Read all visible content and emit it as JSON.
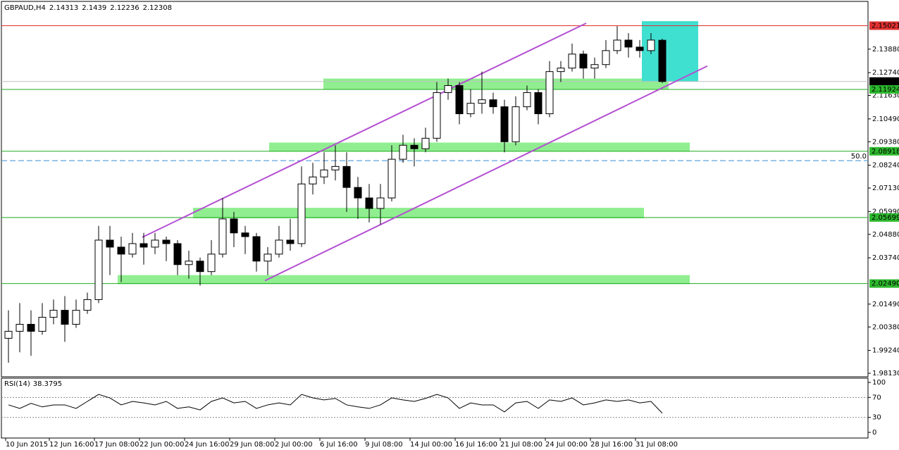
{
  "chart_data": [
    {
      "type": "candlestick",
      "symbol": "GBPAUD,H4",
      "xlim": [
        -0.5,
        307
      ],
      "ylim": [
        1.9796,
        2.162
      ],
      "xticks": [
        {
          "value": 1,
          "label": "10 Jun 2015"
        },
        {
          "value": 16.5,
          "label": "12 Jun 16:00"
        },
        {
          "value": 32.5,
          "label": "17 Jun 08:00"
        },
        {
          "value": 48.5,
          "label": "22 Jun 00:00"
        },
        {
          "value": 64.5,
          "label": "24 Jun 16:00"
        },
        {
          "value": 80.5,
          "label": "29 Jun 08:00"
        },
        {
          "value": 96.5,
          "label": "2 Jul 00:00"
        },
        {
          "value": 112.5,
          "label": "6 Jul 16:00"
        },
        {
          "value": 128.5,
          "label": "9 Jul 08:00"
        },
        {
          "value": 144.5,
          "label": "14 Jul 00:00"
        },
        {
          "value": 160.5,
          "label": "16 Jul 16:00"
        },
        {
          "value": 176.5,
          "label": "21 Jul 08:00"
        },
        {
          "value": 192.5,
          "label": "24 Jul 00:00"
        },
        {
          "value": 208.5,
          "label": "28 Jul 16:00"
        },
        {
          "value": 224.5,
          "label": "31 Jul 08:00"
        }
      ],
      "yticks": [
        {
          "value": 2.1388,
          "label": "2.13880"
        },
        {
          "value": 2.1274,
          "label": "2.12740"
        },
        {
          "value": 2.1163,
          "label": "2.11630"
        },
        {
          "value": 2.1049,
          "label": "2.10490"
        },
        {
          "value": 2.0938,
          "label": "2.09380"
        },
        {
          "value": 2.0824,
          "label": "2.08240"
        },
        {
          "value": 2.0713,
          "label": "2.07130"
        },
        {
          "value": 2.0599,
          "label": "2.05990"
        },
        {
          "value": 2.0488,
          "label": "2.04880"
        },
        {
          "value": 2.0374,
          "label": "2.03740"
        },
        {
          "value": 2.0149,
          "label": "2.01490"
        },
        {
          "value": 2.0038,
          "label": "2.00380"
        },
        {
          "value": 1.9924,
          "label": "1.99240"
        },
        {
          "value": 1.9813,
          "label": "1.98130"
        }
      ],
      "up_color": "#ffffff",
      "down_color": "#000000",
      "outline_color": "#000000",
      "x": [
        2,
        6,
        10,
        14,
        18,
        22,
        26,
        30,
        34,
        38,
        42,
        46,
        50,
        54,
        58,
        62,
        66,
        70,
        74,
        78,
        82,
        86,
        90,
        94,
        98,
        102,
        106,
        110,
        114,
        118,
        122,
        126,
        130,
        134,
        138,
        142,
        146,
        150,
        154,
        158,
        162,
        166,
        170,
        174,
        178,
        182,
        186,
        190,
        194,
        198,
        202,
        206,
        210,
        214,
        218,
        222,
        226,
        230,
        234
      ],
      "ohlc": [
        [
          1.9983,
          2.0119,
          1.9864,
          2.0017
        ],
        [
          2.0017,
          2.0154,
          1.9915,
          2.0051
        ],
        [
          2.0051,
          2.0119,
          1.9898,
          2.0017
        ],
        [
          2.0017,
          2.0154,
          2.0,
          2.0085
        ],
        [
          2.0085,
          2.0171,
          2.0051,
          2.0119
        ],
        [
          2.0119,
          2.0188,
          1.9966,
          2.0051
        ],
        [
          2.0051,
          2.0171,
          2.0034,
          2.0119
        ],
        [
          2.0119,
          2.0205,
          2.0102,
          2.0171
        ],
        [
          2.0171,
          2.0529,
          2.0154,
          2.046
        ],
        [
          2.046,
          2.0529,
          2.029,
          2.0426
        ],
        [
          2.0426,
          2.0477,
          2.0256,
          2.0392
        ],
        [
          2.0392,
          2.0495,
          2.0375,
          2.0443
        ],
        [
          2.0443,
          2.0495,
          2.0341,
          2.0426
        ],
        [
          2.0426,
          2.0495,
          2.0392,
          2.046
        ],
        [
          2.046,
          2.0477,
          2.0358,
          2.0443
        ],
        [
          2.0443,
          2.046,
          2.029,
          2.0341
        ],
        [
          2.0341,
          2.0409,
          2.0273,
          2.0358
        ],
        [
          2.0358,
          2.0375,
          2.0239,
          2.0307
        ],
        [
          2.0307,
          2.046,
          2.029,
          2.0392
        ],
        [
          2.0392,
          2.0665,
          2.0375,
          2.0563
        ],
        [
          2.0563,
          2.0597,
          2.0426,
          2.0495
        ],
        [
          2.0495,
          2.0529,
          2.0392,
          2.0477
        ],
        [
          2.0477,
          2.0495,
          2.0307,
          2.0358
        ],
        [
          2.0358,
          2.0426,
          2.029,
          2.0392
        ],
        [
          2.0392,
          2.0529,
          2.0375,
          2.046
        ],
        [
          2.046,
          2.0563,
          2.0409,
          2.0443
        ],
        [
          2.0443,
          2.0818,
          2.0426,
          2.0733
        ],
        [
          2.0733,
          2.0836,
          2.0682,
          2.0767
        ],
        [
          2.0767,
          2.0887,
          2.0733,
          2.0801
        ],
        [
          2.0801,
          2.0921,
          2.075,
          2.0818
        ],
        [
          2.0818,
          2.0887,
          2.0597,
          2.0716
        ],
        [
          2.0716,
          2.0767,
          2.0563,
          2.0665
        ],
        [
          2.0665,
          2.0733,
          2.0546,
          2.0614
        ],
        [
          2.0614,
          2.0733,
          2.0535,
          2.0665
        ],
        [
          2.0665,
          2.0921,
          2.0648,
          2.0853
        ],
        [
          2.0853,
          2.0972,
          2.0836,
          2.0921
        ],
        [
          2.0921,
          2.0955,
          2.0818,
          2.0904
        ],
        [
          2.0904,
          2.1006,
          2.0887,
          2.0955
        ],
        [
          2.0955,
          2.1228,
          2.0938,
          2.1177
        ],
        [
          2.1177,
          2.1245,
          2.1142,
          2.1211
        ],
        [
          2.1211,
          2.1228,
          2.1023,
          2.1074
        ],
        [
          2.1074,
          2.1194,
          2.1057,
          2.1125
        ],
        [
          2.1125,
          2.1279,
          2.1074,
          2.1142
        ],
        [
          2.1142,
          2.1177,
          2.1074,
          2.1108
        ],
        [
          2.1108,
          2.1142,
          2.0887,
          2.0938
        ],
        [
          2.0938,
          2.1159,
          2.0921,
          2.1108
        ],
        [
          2.1108,
          2.1211,
          2.1091,
          2.1177
        ],
        [
          2.1177,
          2.1194,
          2.1023,
          2.1074
        ],
        [
          2.1074,
          2.133,
          2.1057,
          2.1279
        ],
        [
          2.1279,
          2.133,
          2.1228,
          2.1296
        ],
        [
          2.1296,
          2.1415,
          2.1279,
          2.1364
        ],
        [
          2.1364,
          2.1381,
          2.1245,
          2.1296
        ],
        [
          2.1296,
          2.1347,
          2.1245,
          2.1313
        ],
        [
          2.1313,
          2.1432,
          2.1296,
          2.1381
        ],
        [
          2.1381,
          2.15,
          2.1364,
          2.1432
        ],
        [
          2.1432,
          2.1466,
          2.1347,
          2.1398
        ],
        [
          2.1398,
          2.1432,
          2.1347,
          2.1381
        ],
        [
          2.1381,
          2.1466,
          2.1364,
          2.1432
        ],
        [
          2.14313,
          2.1439,
          2.12236,
          2.12308
        ]
      ],
      "zone_color": "#90ee90",
      "zones": [
        {
          "x": [
            113.75,
            236.25
          ],
          "y": [
            2.1191,
            2.1245
          ]
        },
        {
          "x": [
            94.5,
            243.75
          ],
          "y": [
            2.089,
            2.0934
          ]
        },
        {
          "x": [
            67.5,
            227.5
          ],
          "y": [
            2.0566,
            2.0617
          ]
        },
        {
          "x": [
            40.75,
            243.75
          ],
          "y": [
            2.0246,
            2.029
          ]
        }
      ],
      "box": {
        "x": [
          226.75,
          246.75
        ],
        "y": [
          2.1231,
          2.1524
        ],
        "color": "#40e0d0"
      },
      "trendline_color": "#b450d2",
      "trendlines": [
        {
          "x": [
            49.5,
            207
          ],
          "y": [
            2.0474,
            2.1514
          ]
        },
        {
          "x": [
            93,
            250
          ],
          "y": [
            2.0263,
            2.1306
          ]
        }
      ],
      "levels": [
        {
          "value": 2.15021,
          "color": "#e03030",
          "label_bg": "#e03030"
        },
        {
          "value": 2.12308,
          "color": "#c0c0c0",
          "label_bg": "#000000"
        },
        {
          "value": 2.11924,
          "color": "#22aa22",
          "label_bg": "#2db82d"
        },
        {
          "value": 2.08918,
          "color": "#22aa22",
          "label_bg": "#2db82d"
        },
        {
          "value": 2.05699,
          "color": "#22aa22",
          "label_bg": "#2db82d"
        },
        {
          "value": 2.0249,
          "label": "2.02490",
          "color": "#22aa22",
          "label_bg": "#2db82d"
        }
      ],
      "fib_level": {
        "value": 2.0846,
        "label": "50.0",
        "color": "#3a8fd8"
      }
    },
    {
      "type": "line",
      "title": "RSI(14)",
      "color": "#000000",
      "xlim": [
        -0.5,
        307
      ],
      "ylim": [
        -11.3,
        108.5
      ],
      "yticks": [
        100,
        70,
        30,
        0
      ],
      "levels": [
        70,
        30
      ],
      "x": [
        2,
        6,
        10,
        14,
        18,
        22,
        26,
        30,
        34,
        38,
        42,
        46,
        50,
        54,
        58,
        62,
        66,
        70,
        74,
        78,
        82,
        86,
        90,
        94,
        98,
        102,
        106,
        110,
        114,
        118,
        122,
        126,
        130,
        134,
        138,
        142,
        146,
        150,
        154,
        158,
        162,
        166,
        170,
        174,
        178,
        182,
        186,
        190,
        194,
        198,
        202,
        206,
        210,
        214,
        218,
        222,
        226,
        230,
        234
      ],
      "values": [
        55,
        48,
        58,
        51,
        55,
        55,
        48,
        62,
        76,
        69,
        55,
        62,
        59,
        55,
        62,
        48,
        51,
        45,
        62,
        69,
        59,
        62,
        48,
        55,
        59,
        55,
        76,
        69,
        65,
        68,
        55,
        51,
        48,
        55,
        69,
        65,
        62,
        68,
        76,
        69,
        48,
        59,
        55,
        55,
        41,
        59,
        62,
        48,
        65,
        62,
        69,
        55,
        59,
        65,
        62,
        65,
        59,
        62,
        38.3795
      ]
    }
  ]
}
